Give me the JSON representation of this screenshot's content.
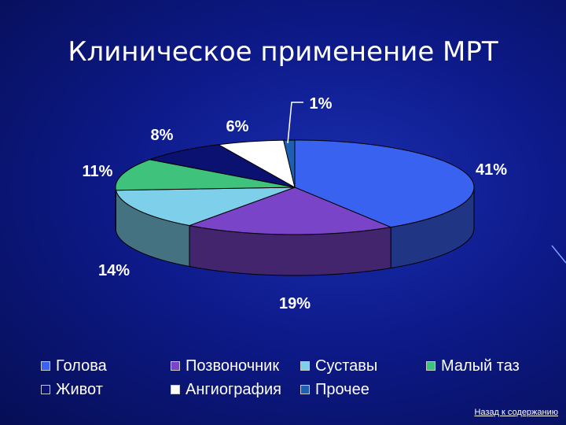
{
  "slide": {
    "title": "Клиническое применение МРТ",
    "back_link": "Назад к содержанию"
  },
  "colors": {
    "background": "#0d1a8a",
    "text": "#ffffff"
  },
  "chart_data": {
    "type": "pie",
    "title": "",
    "style": "3d",
    "legend_position": "bottom",
    "categories": [
      "Голова",
      "Позвоночник",
      "Суставы",
      "Малый таз",
      "Живот",
      "Ангиография",
      "Прочее"
    ],
    "values": [
      41,
      19,
      14,
      11,
      8,
      6,
      1
    ],
    "labels": [
      "41%",
      "19%",
      "14%",
      "11%",
      "8%",
      "6%",
      "1%"
    ],
    "colors": [
      "#3a62f0",
      "#7a44c8",
      "#7ed0ea",
      "#3fc27c",
      "#0b1170",
      "#ffffff",
      "#1e5fb4"
    ]
  }
}
